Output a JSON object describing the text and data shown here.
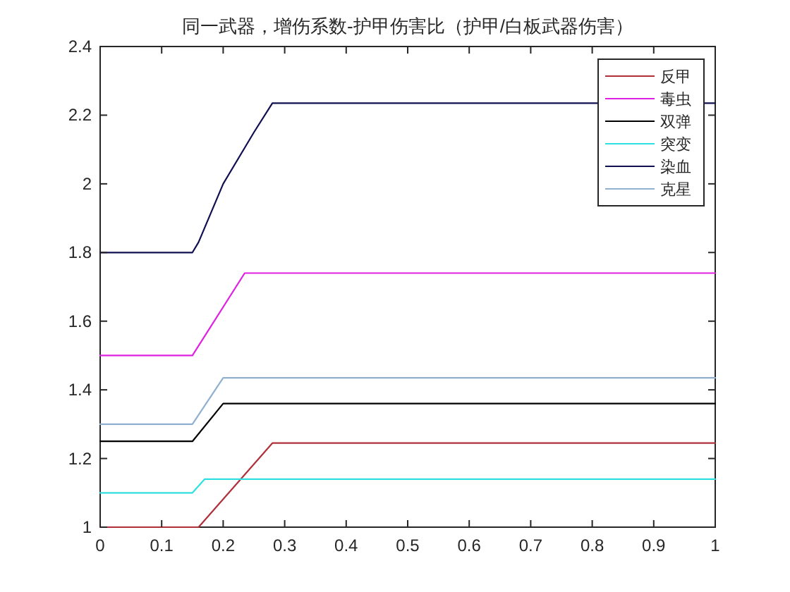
{
  "chart_data": {
    "type": "line",
    "title": "同一武器，增伤系数-护甲伤害比（护甲/白板武器伤害）",
    "xlim": [
      0,
      1
    ],
    "xticks": [
      0,
      0.1,
      0.2,
      0.3,
      0.4,
      0.5,
      0.6,
      0.7,
      0.8,
      0.9,
      1
    ],
    "ylim": [
      1,
      2.4
    ],
    "yticks": [
      1,
      1.2,
      1.4,
      1.6,
      1.8,
      2,
      2.2,
      2.4
    ],
    "grid": false,
    "legend": "top right",
    "marker": "none",
    "line_style": "solid",
    "series": [
      {
        "name": "反甲",
        "color": "#b0303a",
        "x": [
          0,
          0.16,
          0.28,
          1
        ],
        "values": [
          1,
          1,
          1.245,
          1.245
        ]
      },
      {
        "name": "毒虫",
        "color": "#e020e0",
        "x": [
          0,
          0.15,
          0.235,
          1
        ],
        "values": [
          1.5,
          1.5,
          1.74,
          1.74
        ]
      },
      {
        "name": "双弹",
        "color": "#000000",
        "x": [
          0,
          0.15,
          0.2,
          1
        ],
        "values": [
          1.25,
          1.25,
          1.36,
          1.36
        ]
      },
      {
        "name": "突变",
        "color": "#30e0e0",
        "x": [
          0,
          0.15,
          0.17,
          1
        ],
        "values": [
          1.1,
          1.1,
          1.14,
          1.14
        ]
      },
      {
        "name": "染血",
        "color": "#101050",
        "x": [
          0,
          0.15,
          0.16,
          0.2,
          0.25,
          0.28,
          1
        ],
        "values": [
          1.8,
          1.8,
          1.83,
          2.0,
          2.15,
          2.235,
          2.235
        ]
      },
      {
        "name": "克星",
        "color": "#90b0d0",
        "x": [
          0,
          0.15,
          0.2,
          1
        ],
        "values": [
          1.3,
          1.3,
          1.435,
          1.435
        ]
      }
    ]
  }
}
